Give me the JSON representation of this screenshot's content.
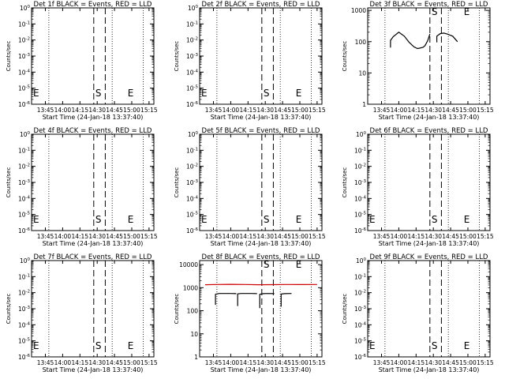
{
  "chart_data": [
    {
      "type": "line",
      "title": "Det 1f BLACK = Events, RED = LLD",
      "xlabel": "Start Time (24-Jan-18 13:37:40)",
      "ylabel": "Counts/sec",
      "yscale": "log",
      "xticks": [
        "13:45",
        "14:00",
        "14:15",
        "14:30",
        "14:45",
        "15:00",
        "15:15"
      ],
      "yticks": [
        "10^0",
        "10^-1",
        "10^-2",
        "10^-3",
        "10^-4",
        "10^-5",
        "10^-6"
      ],
      "ylim": [
        1e-06,
        1
      ],
      "series": [],
      "markers": [
        {
          "label": "E",
          "time": "13:37"
        },
        {
          "label": "S",
          "time": "14:31"
        },
        {
          "label": "E",
          "time": "14:59"
        }
      ]
    },
    {
      "type": "line",
      "title": "Det 2f BLACK = Events, RED = LLD",
      "xlabel": "Start Time (24-Jan-18 13:37:40)",
      "ylabel": "Counts/sec",
      "yscale": "log",
      "xticks": [
        "13:45",
        "14:00",
        "14:15",
        "14:30",
        "14:45",
        "15:00",
        "15:15"
      ],
      "yticks": [
        "10^0",
        "10^-1",
        "10^-2",
        "10^-3",
        "10^-4",
        "10^-5",
        "10^-6"
      ],
      "ylim": [
        1e-06,
        1
      ],
      "series": [],
      "markers": [
        {
          "label": "E",
          "time": "13:37"
        },
        {
          "label": "S",
          "time": "14:31"
        },
        {
          "label": "E",
          "time": "14:59"
        }
      ]
    },
    {
      "type": "line",
      "title": "Det 3f BLACK = Events, RED = LLD",
      "xlabel": "Start Time (24-Jan-18 13:37:40)",
      "ylabel": "Counts/sec",
      "yscale": "log",
      "xticks": [
        "13:45",
        "14:00",
        "14:15",
        "14:30",
        "14:45",
        "15:00",
        "15:15"
      ],
      "yticks": [
        "1",
        "10",
        "100",
        "1000"
      ],
      "ylim": [
        1,
        1200
      ],
      "series": [
        {
          "color": "#000000",
          "x": [
            13.88,
            13.88,
            13.92,
            14.0,
            14.08,
            14.15,
            14.22,
            14.27,
            14.3,
            14.35,
            14.38,
            14.42,
            14.45
          ],
          "y": [
            65,
            110,
            145,
            200,
            150,
            95,
            68,
            60,
            62,
            66,
            75,
            110,
            175
          ]
        },
        {
          "color": "#000000",
          "x": [
            14.55,
            14.55,
            14.6,
            14.65,
            14.7,
            14.78,
            14.85
          ],
          "y": [
            95,
            150,
            180,
            188,
            175,
            150,
            100
          ]
        }
      ],
      "markers": [
        {
          "label": "S",
          "time": "14:31"
        },
        {
          "label": "E",
          "time": "14:59"
        }
      ]
    },
    {
      "type": "line",
      "title": "Det 4f BLACK = Events, RED = LLD",
      "xlabel": "Start Time (24-Jan-18 13:37:40)",
      "ylabel": "Counts/sec",
      "yscale": "log",
      "xticks": [
        "13:45",
        "14:00",
        "14:15",
        "14:30",
        "14:45",
        "15:00",
        "15:15"
      ],
      "yticks": [
        "10^0",
        "10^-1",
        "10^-2",
        "10^-3",
        "10^-4",
        "10^-5",
        "10^-6"
      ],
      "ylim": [
        1e-06,
        1
      ],
      "series": [],
      "markers": [
        {
          "label": "E",
          "time": "13:37"
        },
        {
          "label": "S",
          "time": "14:31"
        },
        {
          "label": "E",
          "time": "14:59"
        }
      ]
    },
    {
      "type": "line",
      "title": "Det 5f BLACK = Events, RED = LLD",
      "xlabel": "Start Time (24-Jan-18 13:37:40)",
      "ylabel": "Counts/sec",
      "yscale": "log",
      "xticks": [
        "13:45",
        "14:00",
        "14:15",
        "14:30",
        "14:45",
        "15:00",
        "15:15"
      ],
      "yticks": [
        "10^0",
        "10^-1",
        "10^-2",
        "10^-3",
        "10^-4",
        "10^-5",
        "10^-6"
      ],
      "ylim": [
        1e-06,
        1
      ],
      "series": [],
      "markers": [
        {
          "label": "E",
          "time": "13:37"
        },
        {
          "label": "S",
          "time": "14:31"
        },
        {
          "label": "E",
          "time": "14:59"
        }
      ]
    },
    {
      "type": "line",
      "title": "Det 6f BLACK = Events, RED = LLD",
      "xlabel": "Start Time (24-Jan-18 13:37:40)",
      "ylabel": "Counts/sec",
      "yscale": "log",
      "xticks": [
        "13:45",
        "14:00",
        "14:15",
        "14:30",
        "14:45",
        "15:00",
        "15:15"
      ],
      "yticks": [
        "10^0",
        "10^-1",
        "10^-2",
        "10^-3",
        "10^-4",
        "10^-5",
        "10^-6"
      ],
      "ylim": [
        1e-06,
        1
      ],
      "series": [],
      "markers": [
        {
          "label": "E",
          "time": "13:37"
        },
        {
          "label": "S",
          "time": "14:31"
        },
        {
          "label": "E",
          "time": "14:59"
        }
      ]
    },
    {
      "type": "line",
      "title": "Det 7f BLACK = Events, RED = LLD",
      "xlabel": "Start Time (24-Jan-18 13:37:40)",
      "ylabel": "Counts/sec",
      "yscale": "log",
      "xticks": [
        "13:45",
        "14:00",
        "14:15",
        "14:30",
        "14:45",
        "15:00",
        "15:15"
      ],
      "yticks": [
        "10^0",
        "10^-1",
        "10^-2",
        "10^-3",
        "10^-4",
        "10^-5",
        "10^-6"
      ],
      "ylim": [
        1e-06,
        1
      ],
      "series": [],
      "markers": [
        {
          "label": "E",
          "time": "13:37"
        },
        {
          "label": "S",
          "time": "14:31"
        },
        {
          "label": "E",
          "time": "14:59"
        }
      ]
    },
    {
      "type": "line",
      "title": "Det 8f BLACK = Events, RED = LLD",
      "xlabel": "Start Time (24-Jan-18 13:37:40)",
      "ylabel": "Counts/sec",
      "yscale": "log",
      "xticks": [
        "13:45",
        "14:00",
        "14:15",
        "14:30",
        "14:45",
        "15:00",
        "15:15"
      ],
      "yticks": [
        "1",
        "10",
        "100",
        "1000",
        "10000"
      ],
      "ylim": [
        1,
        15000
      ],
      "series": [
        {
          "color": "#cc0000",
          "x": [
            13.63,
            13.8,
            14.0,
            14.2,
            14.4,
            14.6,
            14.8,
            15.0,
            15.25
          ],
          "y": [
            1350,
            1380,
            1400,
            1380,
            1350,
            1360,
            1380,
            1370,
            1380
          ]
        },
        {
          "color": "#000000",
          "x": [
            13.78,
            13.78,
            13.83,
            14.0,
            14.08
          ],
          "y": [
            180,
            520,
            560,
            560,
            550
          ]
        },
        {
          "color": "#000000",
          "x": [
            14.1,
            14.1,
            14.15,
            14.3,
            14.38
          ],
          "y": [
            160,
            540,
            560,
            560,
            550
          ]
        },
        {
          "color": "#000000",
          "x": [
            14.42,
            14.42,
            14.47,
            14.55,
            14.63
          ],
          "y": [
            130,
            520,
            550,
            560,
            550
          ]
        },
        {
          "color": "#000000",
          "x": [
            14.73,
            14.73,
            14.78,
            14.88
          ],
          "y": [
            150,
            530,
            550,
            560
          ]
        }
      ],
      "markers": [
        {
          "label": "S",
          "time": "14:31"
        },
        {
          "label": "E",
          "time": "14:59"
        }
      ]
    },
    {
      "type": "line",
      "title": "Det 9f BLACK = Events, RED = LLD",
      "xlabel": "Start Time (24-Jan-18 13:37:40)",
      "ylabel": "Counts/sec",
      "yscale": "log",
      "xticks": [
        "13:45",
        "14:00",
        "14:15",
        "14:30",
        "14:45",
        "15:00",
        "15:15"
      ],
      "yticks": [
        "10^0",
        "10^-1",
        "10^-2",
        "10^-3",
        "10^-4",
        "10^-5",
        "10^-6"
      ],
      "ylim": [
        1e-06,
        1
      ],
      "series": [],
      "markers": [
        {
          "label": "E",
          "time": "13:37"
        },
        {
          "label": "S",
          "time": "14:31"
        },
        {
          "label": "E",
          "time": "14:59"
        }
      ]
    }
  ]
}
